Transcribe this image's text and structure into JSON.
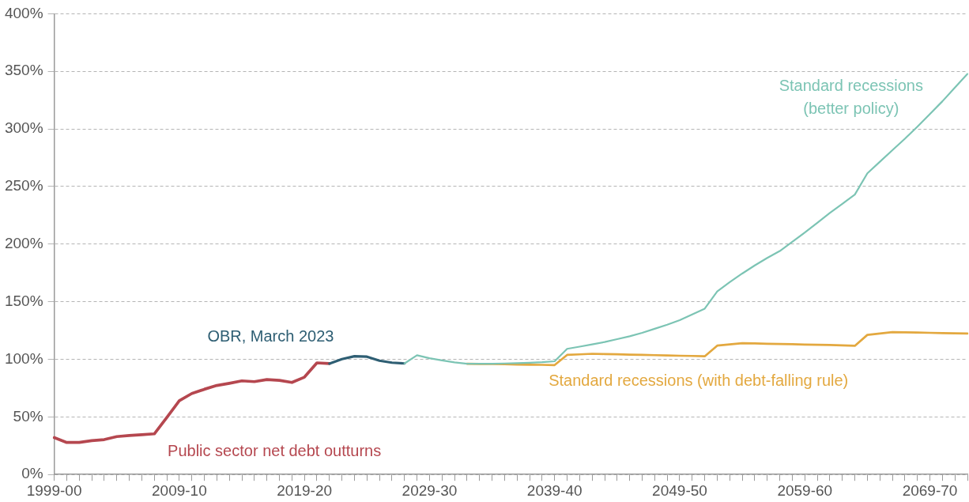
{
  "chart_data": {
    "type": "line",
    "categories": [
      "1999-00",
      null,
      null,
      null,
      null,
      null,
      null,
      null,
      null,
      null,
      "2009-10",
      null,
      null,
      null,
      null,
      null,
      null,
      null,
      null,
      null,
      "2019-20",
      null,
      null,
      null,
      null,
      null,
      null,
      null,
      null,
      null,
      "2029-30",
      null,
      null,
      null,
      null,
      null,
      null,
      null,
      null,
      null,
      "2039-40",
      null,
      null,
      null,
      null,
      null,
      null,
      null,
      null,
      null,
      "2049-50",
      null,
      null,
      null,
      null,
      null,
      null,
      null,
      null,
      null,
      "2059-60",
      null,
      null,
      null,
      null,
      null,
      null,
      null,
      null,
      null,
      "2069-70",
      null,
      null,
      null
    ],
    "series": [
      {
        "name": "Public sector net debt outturns",
        "color": "#b5474f",
        "values": [
          32,
          27.8,
          27.8,
          29.4,
          30.3,
          32.9,
          33.8,
          34.5,
          35.3,
          49.5,
          64,
          70.3,
          74,
          77.3,
          79.2,
          81.3,
          80.6,
          82.4,
          81.7,
          79.9,
          84.5,
          96.9,
          96.3,
          null,
          null,
          null,
          null,
          null,
          null,
          null,
          null,
          null,
          null,
          null,
          null,
          null,
          null,
          null,
          null,
          null,
          null,
          null,
          null,
          null,
          null,
          null,
          null,
          null,
          null,
          null,
          null,
          null,
          null,
          null,
          null,
          null,
          null,
          null,
          null,
          null,
          null,
          null,
          null,
          null,
          null,
          null,
          null,
          null,
          null,
          null,
          null,
          null,
          null,
          null
        ]
      },
      {
        "name": "OBR, March 2023",
        "color": "#2e5e73",
        "values": [
          null,
          null,
          null,
          null,
          null,
          null,
          null,
          null,
          null,
          null,
          null,
          null,
          null,
          null,
          null,
          null,
          null,
          null,
          null,
          null,
          null,
          null,
          96.3,
          100.2,
          102.7,
          102.3,
          98.8,
          97.1,
          96.4,
          null,
          null,
          null,
          null,
          null,
          null,
          null,
          null,
          null,
          null,
          null,
          null,
          null,
          null,
          null,
          null,
          null,
          null,
          null,
          null,
          null,
          null,
          null,
          null,
          null,
          null,
          null,
          null,
          null,
          null,
          null,
          null,
          null,
          null,
          null,
          null,
          null,
          null,
          null,
          null,
          null,
          null,
          null,
          null,
          null
        ]
      },
      {
        "name": "Standard recessions (with debt-falling rule)",
        "color": "#e3a83f",
        "values": [
          null,
          null,
          null,
          null,
          null,
          null,
          null,
          null,
          null,
          null,
          null,
          null,
          null,
          null,
          null,
          null,
          null,
          null,
          null,
          null,
          null,
          null,
          null,
          null,
          null,
          null,
          null,
          null,
          null,
          null,
          null,
          null,
          null,
          96.2,
          96,
          95.9,
          95.7,
          95.5,
          95.3,
          95.2,
          95,
          103.8,
          104.3,
          104.8,
          104.6,
          104.4,
          104.1,
          103.9,
          103.6,
          103.4,
          103.1,
          102.9,
          102.6,
          111.9,
          113,
          114,
          113.8,
          113.5,
          113.3,
          113.1,
          112.8,
          112.6,
          112.4,
          112.1,
          111.7,
          121.2,
          122.4,
          123.6,
          123.4,
          123.2,
          123,
          122.8,
          122.6,
          122.4
        ]
      },
      {
        "name": "Standard recessions (better policy)",
        "color": "#7cc4b4",
        "values": [
          null,
          null,
          null,
          null,
          null,
          null,
          null,
          null,
          null,
          null,
          null,
          null,
          null,
          null,
          null,
          null,
          null,
          null,
          null,
          null,
          null,
          null,
          null,
          null,
          null,
          null,
          null,
          null,
          96.4,
          103.5,
          100.9,
          99,
          97.4,
          96.2,
          96.2,
          96.2,
          96.4,
          96.6,
          97,
          97.5,
          98.3,
          109.1,
          111,
          113,
          115,
          117.5,
          120,
          123,
          126.5,
          130,
          134,
          139,
          144,
          159,
          167,
          174.5,
          181.5,
          188,
          194,
          202,
          210,
          218.5,
          227,
          235,
          243,
          261.5,
          271.5,
          281.5,
          291.5,
          302,
          313,
          324,
          336,
          347.7
        ]
      }
    ],
    "ylim": [
      0,
      400
    ],
    "yticks": [
      {
        "value": 0,
        "label": "0%"
      },
      {
        "value": 50,
        "label": "50%"
      },
      {
        "value": 100,
        "label": "100%"
      },
      {
        "value": 150,
        "label": "150%"
      },
      {
        "value": 200,
        "label": "200%"
      },
      {
        "value": 250,
        "label": "250%"
      },
      {
        "value": 300,
        "label": "300%"
      },
      {
        "value": 350,
        "label": "350%"
      },
      {
        "value": 400,
        "label": "400%"
      }
    ],
    "grid": "y",
    "legend": false,
    "marker": "none",
    "line_style": "solid"
  }
}
